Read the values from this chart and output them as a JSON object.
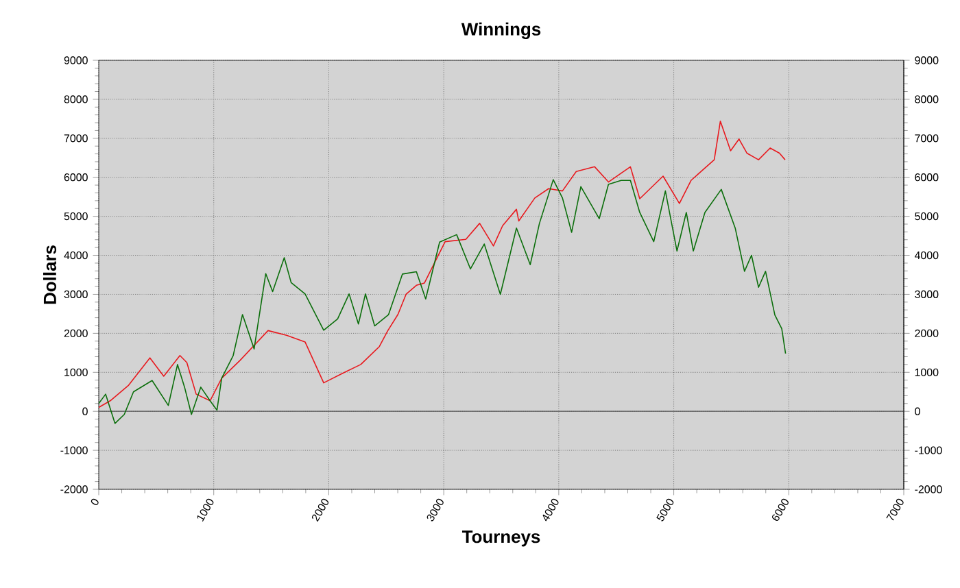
{
  "chart_data": {
    "type": "line",
    "title": "Winnings",
    "xlabel": "Tourneys",
    "ylabel": "Dollars",
    "xlim": [
      0,
      7000
    ],
    "xticks": [
      0,
      1000,
      2000,
      3000,
      4000,
      5000,
      6000,
      7000
    ],
    "ylim": [
      -2000,
      9000
    ],
    "yticks": [
      -2000,
      -1000,
      0,
      1000,
      2000,
      3000,
      4000,
      5000,
      6000,
      7000,
      8000,
      9000
    ],
    "y2lim": [
      -2000,
      9000
    ],
    "y2ticks": [
      -2000,
      -1000,
      0,
      1000,
      2000,
      3000,
      4000,
      5000,
      6000,
      7000,
      8000,
      9000
    ],
    "grid": true,
    "ref_lines": [
      {
        "axis": "y",
        "value": 0,
        "color": "#555555"
      }
    ],
    "series": [
      {
        "color": "#e8191e",
        "x": [
          0,
          100,
          260,
          445,
          565,
          706,
          766,
          847,
          968,
          1069,
          1230,
          1472,
          1633,
          1794,
          1956,
          2117,
          2278,
          2440,
          2512,
          2601,
          2672,
          2762,
          2832,
          3012,
          3192,
          3312,
          3432,
          3512,
          3632,
          3652,
          3792,
          3912,
          4032,
          4152,
          4312,
          4432,
          4623,
          4704,
          4907,
          5049,
          5150,
          5352,
          5405,
          5494,
          5567,
          5636,
          5737,
          5838,
          5919,
          5968
        ],
        "values": [
          100,
          270,
          670,
          1370,
          900,
          1430,
          1250,
          440,
          270,
          850,
          1310,
          2070,
          1950,
          1780,
          730,
          970,
          1200,
          1660,
          2060,
          2480,
          3000,
          3230,
          3290,
          4350,
          4410,
          4820,
          4240,
          4760,
          5180,
          4880,
          5470,
          5710,
          5650,
          6150,
          6270,
          5880,
          6270,
          5450,
          6030,
          5330,
          5920,
          6450,
          7440,
          6680,
          6980,
          6620,
          6450,
          6750,
          6620,
          6450
        ]
      },
      {
        "color": "#0b6e0b",
        "x": [
          0,
          60,
          141,
          222,
          302,
          464,
          605,
          685,
          746,
          806,
          887,
          968,
          1028,
          1069,
          1169,
          1250,
          1351,
          1452,
          1512,
          1613,
          1673,
          1794,
          1956,
          2077,
          2177,
          2258,
          2319,
          2399,
          2520,
          2641,
          2762,
          2843,
          2964,
          3112,
          3232,
          3352,
          3492,
          3632,
          3752,
          3832,
          3952,
          4032,
          4112,
          4192,
          4352,
          4432,
          4542,
          4623,
          4704,
          4826,
          4927,
          5028,
          5109,
          5170,
          5271,
          5413,
          5534,
          5615,
          5676,
          5737,
          5798,
          5879,
          5939,
          5972
        ],
        "values": [
          200,
          440,
          -310,
          -80,
          500,
          790,
          150,
          1200,
          620,
          -80,
          620,
          270,
          30,
          850,
          1430,
          2480,
          1600,
          3530,
          3070,
          3940,
          3300,
          3010,
          2080,
          2370,
          3010,
          2240,
          3010,
          2190,
          2480,
          3520,
          3580,
          2880,
          4340,
          4530,
          3650,
          4290,
          3000,
          4700,
          3760,
          4820,
          5940,
          5470,
          4590,
          5760,
          4940,
          5820,
          5920,
          5920,
          5100,
          4350,
          5650,
          4110,
          5100,
          4110,
          5100,
          5690,
          4700,
          3590,
          4000,
          3180,
          3590,
          2470,
          2120,
          1480
        ]
      }
    ]
  }
}
